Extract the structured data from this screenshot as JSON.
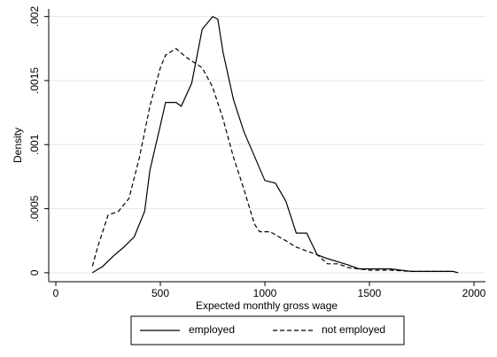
{
  "chart_data": {
    "type": "line",
    "x_label": "Expected monthly gross wage",
    "y_label": "Density",
    "xlim": [
      -34,
      2055
    ],
    "ylim": [
      -7e-05,
      0.00206
    ],
    "xticks": [
      0,
      500,
      1000,
      1500,
      2000
    ],
    "yticks": [
      {
        "value": 0,
        "label": "0"
      },
      {
        "value": 0.0005,
        "label": ".0005"
      },
      {
        "value": 0.001,
        "label": ".001"
      },
      {
        "value": 0.0015,
        "label": ".0015"
      },
      {
        "value": 0.002,
        "label": ".002"
      }
    ],
    "grid": true,
    "legend": "bottom",
    "series": [
      {
        "name": "employed",
        "color": "#000000",
        "dash": false,
        "x": [
          175,
          225,
          275,
          325,
          375,
          425,
          450,
          500,
          525,
          575,
          600,
          650,
          700,
          750,
          775,
          800,
          850,
          900,
          1000,
          1050,
          1100,
          1150,
          1200,
          1250,
          1300,
          1400,
          1450,
          1500,
          1600,
          1700,
          1800,
          1900,
          1925
        ],
        "values": [
          0,
          5e-05,
          0.00013,
          0.0002,
          0.00028,
          0.00048,
          0.0008,
          0.00115,
          0.00133,
          0.00133,
          0.0013,
          0.00148,
          0.0019,
          0.002,
          0.00198,
          0.00172,
          0.00135,
          0.0011,
          0.00072,
          0.0007,
          0.00056,
          0.00031,
          0.00031,
          0.00014,
          0.00011,
          6e-05,
          3e-05,
          3e-05,
          3e-05,
          1e-05,
          1e-05,
          1e-05,
          0
        ]
      },
      {
        "name": "not employed",
        "color": "#000000",
        "dash": true,
        "x": [
          175,
          200,
          250,
          300,
          350,
          400,
          450,
          500,
          525,
          575,
          625,
          700,
          750,
          800,
          850,
          900,
          950,
          975,
          1025,
          1100,
          1150,
          1200,
          1250,
          1300,
          1350,
          1400,
          1500,
          1600,
          1700,
          1900
        ],
        "values": [
          5e-05,
          0.0002,
          0.00045,
          0.00048,
          0.00058,
          0.0009,
          0.0013,
          0.0016,
          0.0017,
          0.00175,
          0.00168,
          0.0016,
          0.00145,
          0.0012,
          0.0009,
          0.00065,
          0.00038,
          0.00032,
          0.00032,
          0.00025,
          0.0002,
          0.00017,
          0.00014,
          7e-05,
          7e-05,
          4e-05,
          2e-05,
          2e-05,
          1e-05,
          1e-05
        ]
      }
    ]
  }
}
